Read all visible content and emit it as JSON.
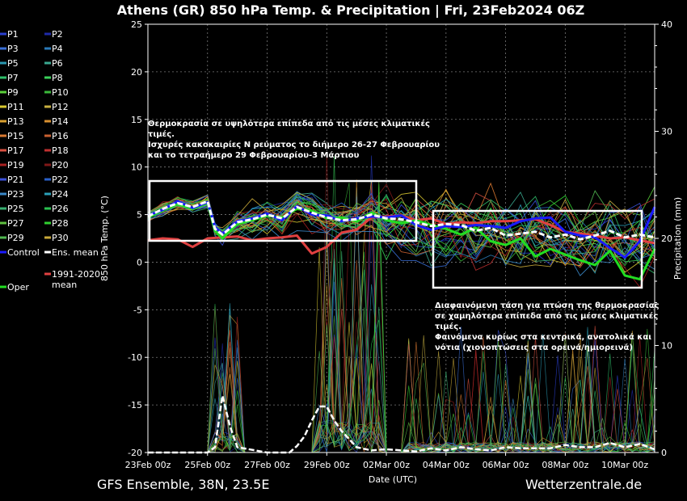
{
  "footer": {
    "left": "GFS Ensemble, 38N, 23.5E",
    "right": "Wetterzentrale.de"
  },
  "chart_data": {
    "type": "line",
    "title": "Athens  (GR)  850 hPa Temp. & Precipitation | Fri, 23Feb2024 06Z",
    "xlabel": "Date (UTC)",
    "ylabel": "850 hPa Temp. (°C)",
    "y2label": "Precipitation (mm)",
    "ylim": [
      -20,
      25
    ],
    "y2lim": [
      0,
      40
    ],
    "yticks": [
      25,
      20,
      15,
      10,
      5,
      0,
      -5,
      -10,
      -15,
      -20
    ],
    "y2ticks": [
      40,
      30,
      20,
      10,
      0
    ],
    "x_ticks": [
      "23Feb 00z",
      "25Feb 00z",
      "27Feb 00z",
      "29Feb 00z",
      "02Mar 00z",
      "04Mar 00z",
      "06Mar 00z",
      "08Mar 00z",
      "10Mar 00z"
    ],
    "grid": true,
    "legend_position": "left",
    "legend": [
      {
        "label": "P1",
        "color": "#2a3fd0"
      },
      {
        "label": "P2",
        "color": "#1e2aa8"
      },
      {
        "label": "P3",
        "color": "#3a6fd8"
      },
      {
        "label": "P4",
        "color": "#2a7ab8"
      },
      {
        "label": "P5",
        "color": "#2a98b0"
      },
      {
        "label": "P6",
        "color": "#3aa890"
      },
      {
        "label": "P7",
        "color": "#2fbf6a"
      },
      {
        "label": "P8",
        "color": "#3ad05a"
      },
      {
        "label": "P9",
        "color": "#5ad03a"
      },
      {
        "label": "P10",
        "color": "#3ab83a"
      },
      {
        "label": "P11",
        "color": "#d8c830"
      },
      {
        "label": "P12",
        "color": "#c8b040"
      },
      {
        "label": "P13",
        "color": "#d8a030"
      },
      {
        "label": "P14",
        "color": "#d89030"
      },
      {
        "label": "P15",
        "color": "#d87830"
      },
      {
        "label": "P16",
        "color": "#c86030"
      },
      {
        "label": "P17",
        "color": "#d85040"
      },
      {
        "label": "P18",
        "color": "#c03030"
      },
      {
        "label": "P19",
        "color": "#a82020"
      },
      {
        "label": "P20",
        "color": "#801818"
      },
      {
        "label": "P21",
        "color": "#3a50d8"
      },
      {
        "label": "P22",
        "color": "#2a60c8"
      },
      {
        "label": "P23",
        "color": "#3a88c8"
      },
      {
        "label": "P24",
        "color": "#2aa0b8"
      },
      {
        "label": "P25",
        "color": "#38b070"
      },
      {
        "label": "P26",
        "color": "#2ac050"
      },
      {
        "label": "P27",
        "color": "#60c040"
      },
      {
        "label": "P28",
        "color": "#30d030"
      },
      {
        "label": "P29",
        "color": "#50b850"
      },
      {
        "label": "P30",
        "color": "#c8a838"
      },
      {
        "label": "Control",
        "color": "#1a1aff"
      },
      {
        "label": "Ens. mean",
        "color": "#ffffff"
      },
      {
        "label": "1991-2020 mean",
        "color": "#e04040"
      },
      {
        "label": "Oper",
        "color": "#22dd22"
      }
    ],
    "annotations": [
      {
        "lines": [
          "Θερμοκρασία σε υψηλότερα επίπεδα από τις μέσες κλιματικές",
          "τιμές.",
          "Ισχυρές κακοκαιρίες N ρεύματος το διήμερο 26-27 Φεβρουαρίου",
          "και το τετραήμερο 29 Φεβρουαρίου-3 Μάρτιου"
        ]
      },
      {
        "lines": [
          "Διαφαινόμενη τάση για πτώση της θερμοκρασίας",
          "σε χαμηλότερα επίπεδα από τις μέσες κλιματικές",
          "τιμές.",
          "Φαινόμενα κυρίως στα κεντρικά, ανατολικά και",
          "νότια (χιονοπτώσεις στα ορεινά/ημιορεινά)"
        ]
      }
    ],
    "series": [
      {
        "name": "Ens. mean",
        "color": "#ffffff",
        "x": [
          0,
          0.5,
          1,
          1.5,
          2,
          2.25,
          2.5,
          3,
          3.5,
          4,
          4.5,
          5,
          5.5,
          6,
          6.5,
          7,
          7.5,
          8,
          8.5,
          9,
          9.5,
          10,
          10.5,
          11,
          11.5,
          12,
          12.5,
          13,
          13.5,
          14,
          14.5,
          15,
          15.5,
          16,
          16.5,
          17
        ],
        "values": [
          4.8,
          5.6,
          6.2,
          5.8,
          6.4,
          3.5,
          2.9,
          4.2,
          4.5,
          5.0,
          4.6,
          5.8,
          5.2,
          4.7,
          4.4,
          4.5,
          5.0,
          4.6,
          4.5,
          4.2,
          3.8,
          4.0,
          3.9,
          3.3,
          3.6,
          2.8,
          3.0,
          3.2,
          2.6,
          2.9,
          2.4,
          2.8,
          3.3,
          2.6,
          2.9,
          2.6
        ]
      },
      {
        "name": "Control",
        "color": "#1a1aff",
        "x": [
          0,
          0.5,
          1,
          1.5,
          2,
          2.25,
          2.5,
          3,
          3.5,
          4,
          4.5,
          5,
          5.5,
          6,
          6.5,
          7,
          7.5,
          8,
          8.5,
          9,
          9.5,
          10,
          10.5,
          11,
          11.5,
          12,
          12.5,
          13,
          13.5,
          14,
          14.5,
          15,
          15.5,
          16,
          16.5,
          17
        ],
        "values": [
          4.9,
          5.5,
          6.4,
          5.7,
          6.3,
          3.7,
          3.0,
          4.3,
          4.6,
          5.1,
          4.4,
          5.9,
          5.0,
          4.9,
          4.3,
          4.6,
          4.8,
          4.7,
          4.9,
          3.9,
          3.4,
          3.8,
          3.7,
          3.9,
          3.8,
          3.6,
          4.3,
          4.6,
          4.7,
          3.2,
          2.8,
          2.6,
          1.5,
          0.5,
          2.2,
          5.8
        ]
      },
      {
        "name": "Oper",
        "color": "#22dd22",
        "x": [
          0,
          0.5,
          1,
          1.5,
          2,
          2.25,
          2.5,
          3,
          3.5,
          4,
          4.5,
          5,
          5.5,
          6,
          6.5,
          7,
          7.5,
          8,
          8.5,
          9,
          9.5,
          10,
          10.5,
          11,
          11.5,
          12,
          12.5,
          13,
          13.5,
          14,
          14.5,
          15,
          15.5,
          16,
          16.5,
          17
        ],
        "values": [
          4.7,
          5.4,
          6.1,
          5.6,
          6.2,
          3.3,
          2.5,
          4.0,
          4.4,
          4.9,
          4.7,
          5.6,
          5.4,
          4.6,
          4.7,
          4.3,
          5.2,
          4.4,
          4.1,
          4.4,
          3.9,
          3.5,
          2.9,
          3.6,
          2.2,
          1.8,
          2.5,
          0.6,
          1.4,
          0.8,
          0.2,
          -0.3,
          1.2,
          -1.4,
          -1.8,
          1.4
        ]
      },
      {
        "name": "1991-2020 mean",
        "color": "#e04040",
        "x": [
          0,
          0.5,
          1,
          1.5,
          2,
          2.5,
          3,
          3.5,
          4,
          4.5,
          5,
          5.5,
          6,
          6.5,
          7,
          7.5,
          8,
          8.5,
          9,
          9.5,
          10,
          10.5,
          11,
          11.5,
          12,
          12.5,
          13,
          13.5,
          14,
          14.5,
          15,
          15.5,
          16,
          16.5,
          17
        ],
        "values": [
          2.3,
          2.5,
          2.4,
          1.6,
          2.5,
          2.6,
          2.7,
          2.3,
          2.5,
          2.6,
          2.8,
          0.9,
          1.6,
          3.1,
          3.4,
          4.7,
          4.8,
          4.9,
          4.4,
          4.6,
          4.0,
          4.2,
          4.1,
          4.3,
          4.3,
          4.4,
          4.5,
          3.9,
          3.2,
          3.0,
          2.8,
          2.5,
          2.6,
          2.3,
          2.0
        ]
      },
      {
        "name": "Ens. mean precipitation",
        "color": "#ffffff",
        "axis": "y2",
        "x": [
          0,
          1,
          2,
          2.25,
          2.5,
          2.75,
          3,
          4,
          4.75,
          5,
          5.25,
          5.5,
          5.75,
          6,
          6.25,
          6.5,
          7,
          7.5,
          8,
          9,
          9.5,
          10,
          10.5,
          11,
          11.5,
          12,
          12.5,
          13,
          13.5,
          14,
          14.5,
          15,
          15.5,
          16,
          16.5,
          17
        ],
        "values": [
          0,
          0,
          0,
          0.5,
          5.3,
          2.5,
          0.5,
          0,
          0,
          0.6,
          1.5,
          3.0,
          4.3,
          4.3,
          3.0,
          2.0,
          0.5,
          0.2,
          0.3,
          0.1,
          0.4,
          0.2,
          0.5,
          0.3,
          0.2,
          0.5,
          0.4,
          0.4,
          0.4,
          0.7,
          0.5,
          0.5,
          0.9,
          0.5,
          0.8,
          0.3
        ]
      }
    ]
  }
}
